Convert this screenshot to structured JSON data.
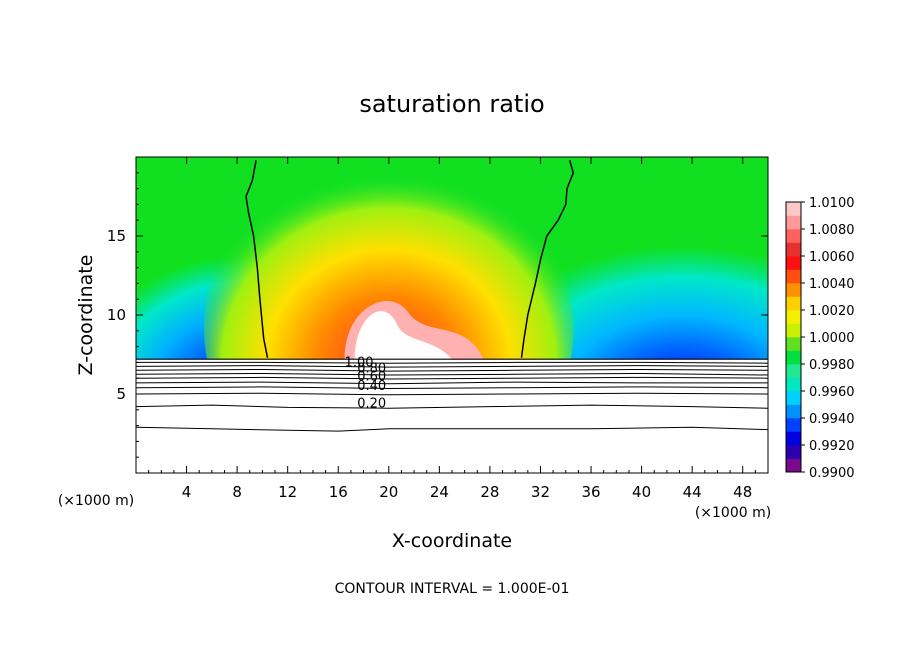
{
  "chart_data": {
    "type": "heatmap",
    "title": "saturation ratio",
    "xlabel": "X-coordinate",
    "ylabel": "Z-coordinate",
    "x_unit_left": "(×1000 m)",
    "x_unit_right": "(×1000 m)",
    "footer": "CONTOUR INTERVAL = 1.000E-01",
    "xlim": [
      0,
      50
    ],
    "ylim": [
      0,
      20
    ],
    "x_ticks": [
      4,
      8,
      12,
      16,
      20,
      24,
      28,
      32,
      36,
      40,
      44,
      48
    ],
    "x_tick_labels": [
      "4",
      "8",
      "12",
      "16",
      "20",
      "24",
      "28",
      "32",
      "36",
      "40",
      "44",
      "48"
    ],
    "y_ticks": [
      5,
      10,
      15
    ],
    "y_tick_labels": [
      "5",
      "10",
      "15"
    ],
    "colorbar": {
      "min": 0.99,
      "max": 1.01,
      "tick_labels": [
        "1.0100",
        "1.0080",
        "1.0060",
        "1.0040",
        "1.0020",
        "1.0000",
        "0.9980",
        "0.9960",
        "0.9940",
        "0.9920",
        "0.9900"
      ],
      "colors": [
        "#7a0a8c",
        "#2a00b0",
        "#0000e0",
        "#0040ff",
        "#0090ff",
        "#00d0ff",
        "#00e8c0",
        "#20e890",
        "#00e040",
        "#60e020",
        "#c8f000",
        "#f0f000",
        "#ffd000",
        "#ff9000",
        "#ff5010",
        "#ff1010",
        "#e83030",
        "#ff6060",
        "#ff9a9a",
        "#ffc8c8"
      ]
    },
    "cloud_base_height": 7.2,
    "contour_labels": [
      {
        "text": "1.00",
        "x": 16.5,
        "y": 7.0
      },
      {
        "text": "0.80",
        "x": 17.5,
        "y": 6.6
      },
      {
        "text": "0.60",
        "x": 17.5,
        "y": 6.1
      },
      {
        "text": "0.40",
        "x": 17.5,
        "y": 5.5
      },
      {
        "text": "0.20",
        "x": 17.5,
        "y": 4.4
      }
    ],
    "sub_cloud_contours": [
      [
        [
          0,
          7.0
        ],
        [
          10,
          7.0
        ],
        [
          20,
          6.95
        ],
        [
          30,
          7.0
        ],
        [
          40,
          7.0
        ],
        [
          50,
          6.95
        ]
      ],
      [
        [
          0,
          6.75
        ],
        [
          10,
          6.8
        ],
        [
          20,
          6.7
        ],
        [
          30,
          6.75
        ],
        [
          40,
          6.8
        ],
        [
          50,
          6.75
        ]
      ],
      [
        [
          0,
          6.5
        ],
        [
          10,
          6.55
        ],
        [
          20,
          6.45
        ],
        [
          30,
          6.5
        ],
        [
          40,
          6.55
        ],
        [
          50,
          6.5
        ]
      ],
      [
        [
          0,
          6.25
        ],
        [
          10,
          6.3
        ],
        [
          20,
          6.2
        ],
        [
          30,
          6.25
        ],
        [
          40,
          6.3
        ],
        [
          50,
          6.2
        ]
      ],
      [
        [
          0,
          6.0
        ],
        [
          10,
          6.05
        ],
        [
          20,
          5.95
        ],
        [
          30,
          6.0
        ],
        [
          40,
          6.05
        ],
        [
          50,
          6.0
        ]
      ],
      [
        [
          0,
          5.7
        ],
        [
          10,
          5.75
        ],
        [
          20,
          5.65
        ],
        [
          30,
          5.75
        ],
        [
          40,
          5.7
        ],
        [
          50,
          5.7
        ]
      ],
      [
        [
          0,
          5.4
        ],
        [
          10,
          5.45
        ],
        [
          20,
          5.35
        ],
        [
          30,
          5.4
        ],
        [
          40,
          5.45
        ],
        [
          50,
          5.4
        ]
      ],
      [
        [
          0,
          5.0
        ],
        [
          10,
          5.05
        ],
        [
          20,
          4.95
        ],
        [
          30,
          5.0
        ],
        [
          40,
          5.05
        ],
        [
          50,
          5.0
        ]
      ],
      [
        [
          0,
          4.2
        ],
        [
          6,
          4.3
        ],
        [
          12,
          4.15
        ],
        [
          20,
          4.1
        ],
        [
          28,
          4.2
        ],
        [
          36,
          4.3
        ],
        [
          44,
          4.2
        ],
        [
          50,
          4.1
        ]
      ],
      [
        [
          0,
          2.9
        ],
        [
          6,
          2.8
        ],
        [
          12,
          2.7
        ],
        [
          16,
          2.65
        ],
        [
          20,
          2.8
        ],
        [
          28,
          2.8
        ],
        [
          36,
          2.8
        ],
        [
          44,
          2.9
        ],
        [
          50,
          2.75
        ]
      ]
    ],
    "unity_contour_left": [
      [
        9.5,
        19.8
      ],
      [
        9.2,
        18.5
      ],
      [
        8.7,
        17.5
      ],
      [
        8.9,
        16.5
      ],
      [
        9.3,
        15.0
      ],
      [
        9.6,
        13.0
      ],
      [
        9.8,
        11.0
      ],
      [
        10.1,
        8.5
      ],
      [
        10.4,
        7.3
      ]
    ],
    "unity_contour_right": [
      [
        34.3,
        19.8
      ],
      [
        34.6,
        19.0
      ],
      [
        34.1,
        18.0
      ],
      [
        34.0,
        17.0
      ],
      [
        33.4,
        16.0
      ],
      [
        32.5,
        15.0
      ],
      [
        32.0,
        13.5
      ],
      [
        31.6,
        12.0
      ],
      [
        31.0,
        10.0
      ],
      [
        30.7,
        8.5
      ],
      [
        30.5,
        7.3
      ]
    ]
  }
}
